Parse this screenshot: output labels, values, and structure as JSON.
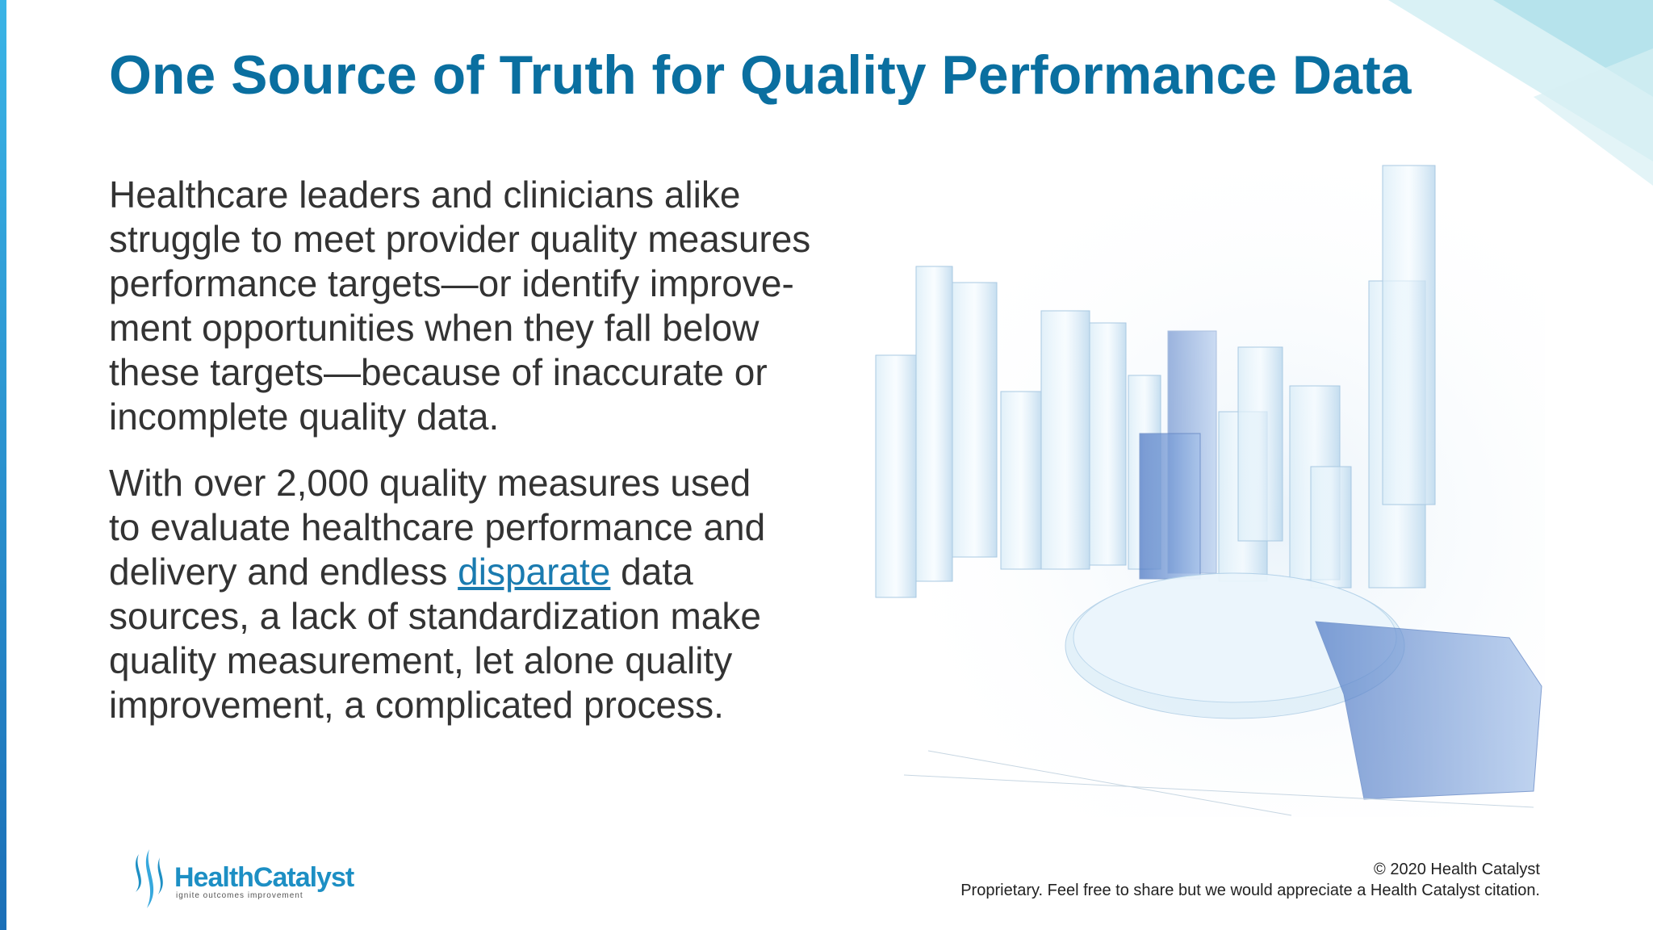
{
  "header": {
    "title": "One Source of Truth for Quality Performance Data"
  },
  "body": {
    "paragraphs": [
      {
        "lines": [
          "Healthcare leaders and clinicians alike",
          "struggle to meet provider quality measures",
          "performance targets—or identify improve-",
          "ment opportunities when they fall below",
          "these targets—because of inaccurate or",
          "incomplete quality data."
        ]
      },
      {
        "lines": [
          "With over 2,000 quality measures used",
          "to evaluate healthcare performance and",
          {
            "before": "delivery and endless ",
            "link": "disparate",
            "after": " data"
          },
          "sources, a lack of standardization make",
          "quality measurement, let alone quality",
          "improvement, a complicated process."
        ]
      }
    ]
  },
  "footer": {
    "logo": {
      "name": "HealthCatalyst",
      "tagline": "ignite outcomes improvement"
    },
    "copyright": "© 2020 Health Catalyst",
    "notice": "Proprietary. Feel free to share but we would appreciate a Health Catalyst citation."
  }
}
